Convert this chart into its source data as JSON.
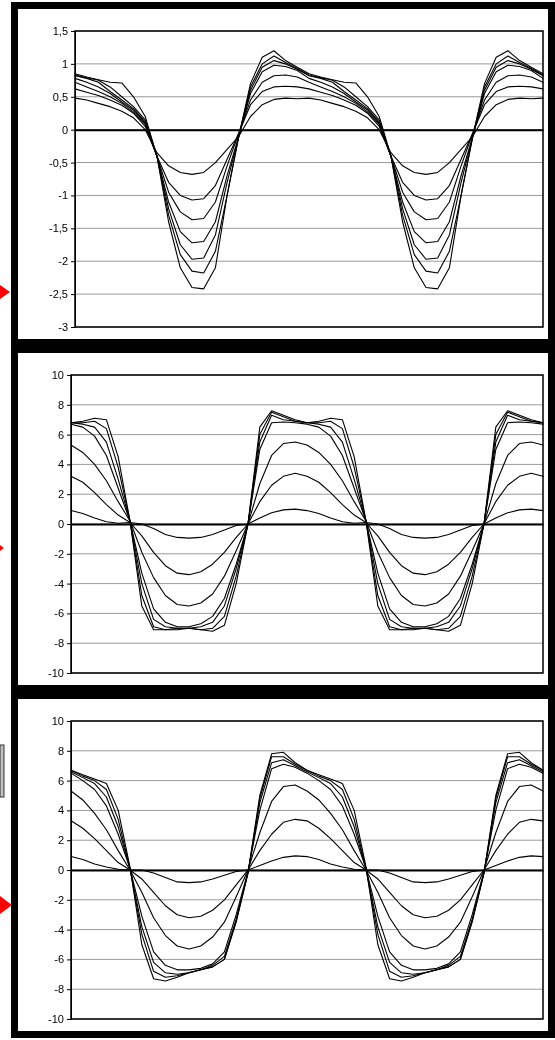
{
  "chart_data": [
    {
      "type": "line",
      "categories": [
        null,
        null,
        null,
        null,
        null,
        null,
        null,
        null,
        null,
        null,
        null,
        null,
        null,
        null,
        null,
        null,
        null,
        null,
        null,
        null,
        null,
        null,
        null,
        null,
        null,
        null,
        null,
        null,
        null,
        null,
        null,
        null,
        null,
        null,
        null,
        null,
        null,
        null,
        null,
        null,
        null
      ],
      "ylim": [
        -3,
        1.5
      ],
      "yticks": [
        {
          "value": -3,
          "label": "-3"
        },
        {
          "value": -2.5,
          "label": "-2,5"
        },
        {
          "value": -2,
          "label": "-2"
        },
        {
          "value": -1.5,
          "label": "-1,5"
        },
        {
          "value": -1,
          "label": "-1"
        },
        {
          "value": -0.5,
          "label": "-0,5"
        },
        {
          "value": 0,
          "label": "0"
        },
        {
          "value": 0.5,
          "label": "0,5"
        },
        {
          "value": 1,
          "label": "1"
        },
        {
          "value": 1.5,
          "label": "1,5"
        }
      ],
      "grid": "y",
      "tick_labels": "y",
      "line_style": "solid",
      "marker": "none",
      "series": [
        {
          "color": "#000000",
          "values": [
            0.85,
            0.8,
            0.76,
            0.72,
            0.71,
            0.5,
            0.2,
            -0.4,
            -1.4,
            -2.1,
            -2.4,
            -2.42,
            -2.1,
            -1.0,
            -0.1,
            0.7,
            1.1,
            1.2,
            1.05,
            0.95,
            0.85,
            0.8,
            0.76,
            0.72,
            0.71,
            0.5,
            0.2,
            -0.4,
            -1.4,
            -2.1,
            -2.4,
            -2.42,
            -2.1,
            -1.0,
            -0.1,
            0.7,
            1.1,
            1.2,
            1.05,
            0.95,
            0.85
          ]
        },
        {
          "color": "#000000",
          "values": [
            0.83,
            0.79,
            0.75,
            0.65,
            0.5,
            0.35,
            0.15,
            -0.4,
            -1.3,
            -1.9,
            -2.15,
            -2.18,
            -1.85,
            -1.0,
            -0.1,
            0.65,
            1.0,
            1.12,
            1.02,
            0.93,
            0.83,
            0.79,
            0.75,
            0.65,
            0.5,
            0.35,
            0.15,
            -0.4,
            -1.3,
            -1.9,
            -2.15,
            -2.18,
            -1.85,
            -1.0,
            -0.1,
            0.65,
            1.0,
            1.12,
            1.02,
            0.93,
            0.83
          ]
        },
        {
          "color": "#000000",
          "values": [
            0.82,
            0.78,
            0.72,
            0.58,
            0.45,
            0.32,
            0.12,
            -0.4,
            -1.2,
            -1.75,
            -1.97,
            -1.95,
            -1.6,
            -0.8,
            -0.1,
            0.6,
            0.95,
            1.05,
            1.0,
            0.92,
            0.82,
            0.78,
            0.72,
            0.58,
            0.45,
            0.32,
            0.12,
            -0.4,
            -1.2,
            -1.75,
            -1.97,
            -1.95,
            -1.6,
            -0.8,
            -0.1,
            0.6,
            0.95,
            1.05,
            1.0,
            0.92,
            0.82
          ]
        },
        {
          "color": "#000000",
          "values": [
            0.78,
            0.72,
            0.65,
            0.55,
            0.42,
            0.3,
            0.1,
            -0.4,
            -1.1,
            -1.55,
            -1.72,
            -1.7,
            -1.4,
            -0.7,
            -0.1,
            0.55,
            0.88,
            0.98,
            0.96,
            0.9,
            0.78,
            0.72,
            0.65,
            0.55,
            0.42,
            0.3,
            0.1,
            -0.4,
            -1.1,
            -1.55,
            -1.72,
            -1.7,
            -1.4,
            -0.7,
            -0.1,
            0.55,
            0.88,
            0.98,
            0.96,
            0.9,
            0.78
          ]
        },
        {
          "color": "#000000",
          "values": [
            0.72,
            0.65,
            0.58,
            0.5,
            0.4,
            0.27,
            0.08,
            -0.4,
            -0.95,
            -1.25,
            -1.37,
            -1.35,
            -1.1,
            -0.55,
            -0.05,
            0.45,
            0.72,
            0.82,
            0.83,
            0.8,
            0.72,
            0.65,
            0.58,
            0.5,
            0.4,
            0.27,
            0.08,
            -0.4,
            -0.95,
            -1.25,
            -1.37,
            -1.35,
            -1.1,
            -0.55,
            -0.05,
            0.45,
            0.72,
            0.82,
            0.83,
            0.8,
            0.72
          ]
        },
        {
          "color": "#000000",
          "values": [
            0.62,
            0.57,
            0.52,
            0.45,
            0.37,
            0.25,
            0.05,
            -0.4,
            -0.8,
            -1.0,
            -1.07,
            -1.05,
            -0.85,
            -0.45,
            -0.05,
            0.38,
            0.58,
            0.65,
            0.66,
            0.65,
            0.62,
            0.57,
            0.52,
            0.45,
            0.37,
            0.25,
            0.05,
            -0.4,
            -0.8,
            -1.0,
            -1.07,
            -1.05,
            -0.85,
            -0.45,
            -0.05,
            0.38,
            0.58,
            0.65,
            0.66,
            0.65,
            0.62
          ]
        },
        {
          "color": "#000000",
          "values": [
            0.48,
            0.45,
            0.4,
            0.35,
            0.28,
            0.18,
            0.0,
            -0.35,
            -0.55,
            -0.65,
            -0.68,
            -0.65,
            -0.5,
            -0.3,
            -0.1,
            0.2,
            0.38,
            0.46,
            0.48,
            0.47,
            0.48,
            0.45,
            0.4,
            0.35,
            0.28,
            0.18,
            0.0,
            -0.35,
            -0.55,
            -0.65,
            -0.68,
            -0.65,
            -0.5,
            -0.3,
            -0.1,
            0.2,
            0.38,
            0.46,
            0.48,
            0.47,
            0.48
          ]
        }
      ]
    },
    {
      "type": "line",
      "categories": [
        null,
        null,
        null,
        null,
        null,
        null,
        null,
        null,
        null,
        null,
        null,
        null,
        null,
        null,
        null,
        null,
        null,
        null,
        null,
        null,
        null,
        null,
        null,
        null,
        null,
        null,
        null,
        null,
        null,
        null,
        null,
        null,
        null,
        null,
        null,
        null,
        null,
        null,
        null,
        null,
        null
      ],
      "ylim": [
        -10,
        10
      ],
      "yticks": [
        -10,
        -8,
        -6,
        -4,
        -2,
        0,
        2,
        4,
        6,
        8,
        10
      ],
      "grid": "y",
      "tick_labels": "y",
      "line_style": "solid",
      "marker": "none",
      "series": [
        {
          "color": "#000000",
          "values": [
            6.8,
            6.9,
            7.1,
            7.0,
            4.5,
            0.2,
            -5.5,
            -7.1,
            -7.1,
            -7.1,
            -7.0,
            -7.1,
            -7.2,
            -6.8,
            -4.0,
            0,
            6.5,
            7.6,
            7.3,
            7.0,
            6.8,
            6.9,
            7.1,
            7.0,
            4.5,
            0.2,
            -5.5,
            -7.1,
            -7.1,
            -7.1,
            -7.0,
            -7.1,
            -7.2,
            -6.8,
            -4.0,
            0,
            6.5,
            7.6,
            7.3,
            7.0,
            6.8
          ]
        },
        {
          "color": "#000000",
          "values": [
            6.8,
            6.8,
            6.9,
            6.4,
            3.8,
            0.2,
            -4.8,
            -6.9,
            -7.1,
            -7.0,
            -7.0,
            -7.1,
            -7.0,
            -6.2,
            -3.5,
            0,
            6.0,
            7.5,
            7.2,
            6.9,
            6.8,
            6.8,
            6.9,
            6.4,
            3.8,
            0.2,
            -4.8,
            -6.9,
            -7.1,
            -7.0,
            -7.0,
            -7.1,
            -7.0,
            -6.2,
            -3.5,
            0,
            6.0,
            7.5,
            7.2,
            6.9,
            6.8
          ]
        },
        {
          "color": "#000000",
          "values": [
            6.8,
            6.7,
            6.5,
            5.5,
            3.0,
            0.2,
            -4.0,
            -6.4,
            -6.9,
            -7.0,
            -7.0,
            -6.9,
            -6.6,
            -5.5,
            -3.0,
            0,
            5.5,
            7.3,
            7.0,
            6.9,
            6.8,
            6.7,
            6.5,
            5.5,
            3.0,
            0.2,
            -4.0,
            -6.4,
            -6.9,
            -7.0,
            -7.0,
            -6.9,
            -6.6,
            -5.5,
            -3.0,
            0,
            5.5,
            7.3,
            7.0,
            6.9,
            6.8
          ]
        },
        {
          "color": "#000000",
          "values": [
            6.7,
            6.5,
            5.9,
            4.6,
            2.4,
            0.2,
            -3.3,
            -5.7,
            -6.6,
            -6.9,
            -6.9,
            -6.7,
            -6.2,
            -5.0,
            -2.7,
            0,
            5.0,
            6.8,
            6.85,
            6.8,
            6.7,
            6.5,
            5.9,
            4.6,
            2.4,
            0.2,
            -3.3,
            -5.7,
            -6.6,
            -6.9,
            -6.9,
            -6.7,
            -6.2,
            -5.0,
            -2.7,
            0,
            5.0,
            6.8,
            6.85,
            6.8,
            6.7
          ]
        },
        {
          "color": "#000000",
          "values": [
            5.3,
            4.8,
            4.0,
            2.9,
            1.5,
            0.2,
            -1.9,
            -3.6,
            -4.8,
            -5.4,
            -5.5,
            -5.3,
            -4.7,
            -3.5,
            -1.8,
            0,
            2.7,
            4.6,
            5.4,
            5.5,
            5.3,
            4.8,
            4.0,
            2.9,
            1.5,
            0.2,
            -1.9,
            -3.6,
            -4.8,
            -5.4,
            -5.5,
            -5.3,
            -4.7,
            -3.5,
            -1.8,
            0,
            2.7,
            4.6,
            5.4,
            5.5,
            5.3
          ]
        },
        {
          "color": "#000000",
          "values": [
            3.2,
            2.8,
            2.1,
            1.3,
            0.6,
            0.1,
            -0.8,
            -1.9,
            -2.8,
            -3.3,
            -3.4,
            -3.2,
            -2.7,
            -1.9,
            -0.9,
            0,
            1.5,
            2.6,
            3.2,
            3.4,
            3.2,
            2.8,
            2.1,
            1.3,
            0.6,
            0.1,
            -0.8,
            -1.9,
            -2.8,
            -3.3,
            -3.4,
            -3.2,
            -2.7,
            -1.9,
            -0.9,
            0,
            1.5,
            2.6,
            3.2,
            3.4,
            3.2
          ]
        },
        {
          "color": "#000000",
          "values": [
            0.9,
            0.7,
            0.4,
            0.15,
            0.05,
            0.1,
            0.0,
            -0.3,
            -0.7,
            -0.9,
            -0.95,
            -0.9,
            -0.7,
            -0.4,
            -0.1,
            0,
            0.4,
            0.75,
            0.95,
            1.0,
            0.9,
            0.7,
            0.4,
            0.15,
            0.05,
            0.1,
            0.0,
            -0.3,
            -0.7,
            -0.9,
            -0.95,
            -0.9,
            -0.7,
            -0.4,
            -0.1,
            0,
            0.4,
            0.75,
            0.95,
            1.0,
            0.9
          ]
        }
      ]
    },
    {
      "type": "line",
      "categories": [
        null,
        null,
        null,
        null,
        null,
        null,
        null,
        null,
        null,
        null,
        null,
        null,
        null,
        null,
        null,
        null,
        null,
        null,
        null,
        null,
        null,
        null,
        null,
        null,
        null,
        null,
        null,
        null,
        null,
        null,
        null,
        null,
        null,
        null,
        null,
        null,
        null,
        null,
        null,
        null,
        null
      ],
      "ylim": [
        -10,
        10
      ],
      "yticks": [
        -10,
        -8,
        -6,
        -4,
        -2,
        0,
        2,
        4,
        6,
        8,
        10
      ],
      "grid": "y",
      "tick_labels": "y",
      "line_style": "solid",
      "marker": "none",
      "series": [
        {
          "color": "#000000",
          "values": [
            6.7,
            6.4,
            6.1,
            5.8,
            4.0,
            0.2,
            -5.0,
            -7.3,
            -7.45,
            -7.2,
            -6.9,
            -6.7,
            -6.5,
            -6.0,
            -3.5,
            -0.2,
            5.0,
            7.8,
            7.9,
            7.2,
            6.7,
            6.4,
            6.1,
            5.8,
            4.0,
            0.2,
            -5.0,
            -7.3,
            -7.45,
            -7.2,
            -6.9,
            -6.7,
            -6.5,
            -6.0,
            -3.5,
            -0.2,
            5.0,
            7.8,
            7.9,
            7.2,
            6.7
          ]
        },
        {
          "color": "#000000",
          "values": [
            6.7,
            6.3,
            6.0,
            5.4,
            3.4,
            0.1,
            -4.3,
            -6.8,
            -7.2,
            -7.1,
            -6.9,
            -6.7,
            -6.5,
            -6.0,
            -3.4,
            -0.2,
            4.8,
            7.6,
            7.6,
            7.1,
            6.7,
            6.3,
            6.0,
            5.4,
            3.4,
            0.1,
            -4.3,
            -6.8,
            -7.2,
            -7.1,
            -6.9,
            -6.7,
            -6.5,
            -6.0,
            -3.4,
            -0.2,
            4.8,
            7.6,
            7.6,
            7.1,
            6.7
          ]
        },
        {
          "color": "#000000",
          "values": [
            6.6,
            6.2,
            5.8,
            4.9,
            2.9,
            0.1,
            -3.8,
            -6.2,
            -6.9,
            -7.0,
            -6.9,
            -6.7,
            -6.4,
            -5.8,
            -3.3,
            -0.2,
            4.5,
            7.2,
            7.4,
            7.0,
            6.6,
            6.2,
            5.8,
            4.9,
            2.9,
            0.1,
            -3.8,
            -6.2,
            -6.9,
            -7.0,
            -6.9,
            -6.7,
            -6.4,
            -5.8,
            -3.3,
            -0.2,
            4.5,
            7.2,
            7.4,
            7.0,
            6.6
          ]
        },
        {
          "color": "#000000",
          "values": [
            6.5,
            6.0,
            5.4,
            4.3,
            2.4,
            0.1,
            -3.1,
            -5.5,
            -6.4,
            -6.7,
            -6.7,
            -6.6,
            -6.3,
            -5.5,
            -3.0,
            -0.1,
            4.0,
            6.8,
            7.1,
            6.9,
            6.5,
            6.0,
            5.4,
            4.3,
            2.4,
            0.1,
            -3.1,
            -5.5,
            -6.4,
            -6.7,
            -6.7,
            -6.6,
            -6.3,
            -5.5,
            -3.0,
            -0.1,
            4.0,
            6.8,
            7.1,
            6.9,
            6.5
          ]
        },
        {
          "color": "#000000",
          "values": [
            5.3,
            4.7,
            3.8,
            2.7,
            1.3,
            0.0,
            -1.5,
            -3.2,
            -4.4,
            -5.1,
            -5.3,
            -5.1,
            -4.5,
            -3.5,
            -1.8,
            0,
            2.5,
            4.6,
            5.6,
            5.7,
            5.3,
            4.7,
            3.8,
            2.7,
            1.3,
            0.0,
            -1.5,
            -3.2,
            -4.4,
            -5.1,
            -5.3,
            -5.1,
            -4.5,
            -3.5,
            -1.8,
            0,
            2.5,
            4.6,
            5.6,
            5.7,
            5.3
          ]
        },
        {
          "color": "#000000",
          "values": [
            3.3,
            2.8,
            2.1,
            1.3,
            0.5,
            0.0,
            -0.6,
            -1.5,
            -2.4,
            -3.0,
            -3.2,
            -3.1,
            -2.7,
            -2.0,
            -1.0,
            0,
            1.3,
            2.4,
            3.2,
            3.4,
            3.3,
            2.8,
            2.1,
            1.3,
            0.5,
            0.0,
            -0.6,
            -1.5,
            -2.4,
            -3.0,
            -3.2,
            -3.1,
            -2.7,
            -2.0,
            -1.0,
            0,
            1.3,
            2.4,
            3.2,
            3.4,
            3.3
          ]
        },
        {
          "color": "#000000",
          "values": [
            0.9,
            0.7,
            0.4,
            0.2,
            0.05,
            0.0,
            0.0,
            -0.2,
            -0.5,
            -0.8,
            -0.85,
            -0.8,
            -0.6,
            -0.35,
            -0.1,
            0,
            0.3,
            0.6,
            0.85,
            0.95,
            0.9,
            0.7,
            0.4,
            0.2,
            0.05,
            0.0,
            0.0,
            -0.2,
            -0.5,
            -0.8,
            -0.85,
            -0.8,
            -0.6,
            -0.35,
            -0.1,
            0,
            0.3,
            0.6,
            0.85,
            0.95,
            0.9
          ]
        }
      ]
    }
  ]
}
